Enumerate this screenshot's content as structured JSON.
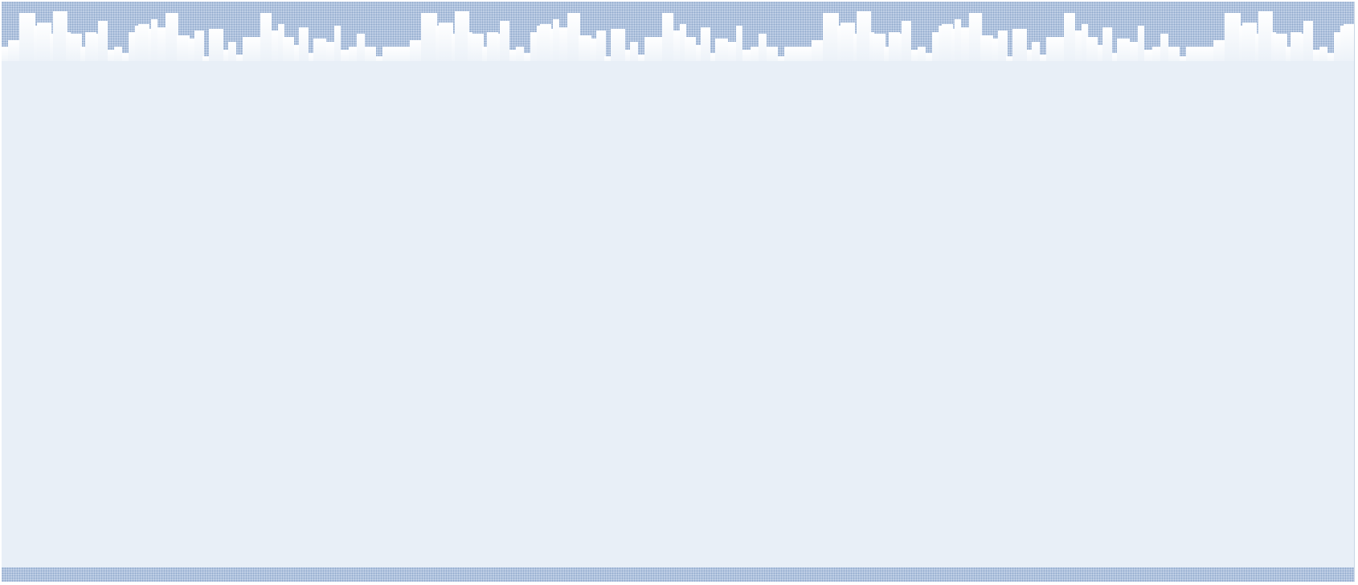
{
  "page": {
    "background_color": "#e8eff7",
    "pattern_color": "#8fa9cc",
    "pattern_base_color": "#c0d0e6",
    "skyline_color": "#ffffff"
  },
  "header": {
    "decoration": "city-skyline-banner"
  },
  "footer": {
    "decoration": "dotted-band"
  }
}
